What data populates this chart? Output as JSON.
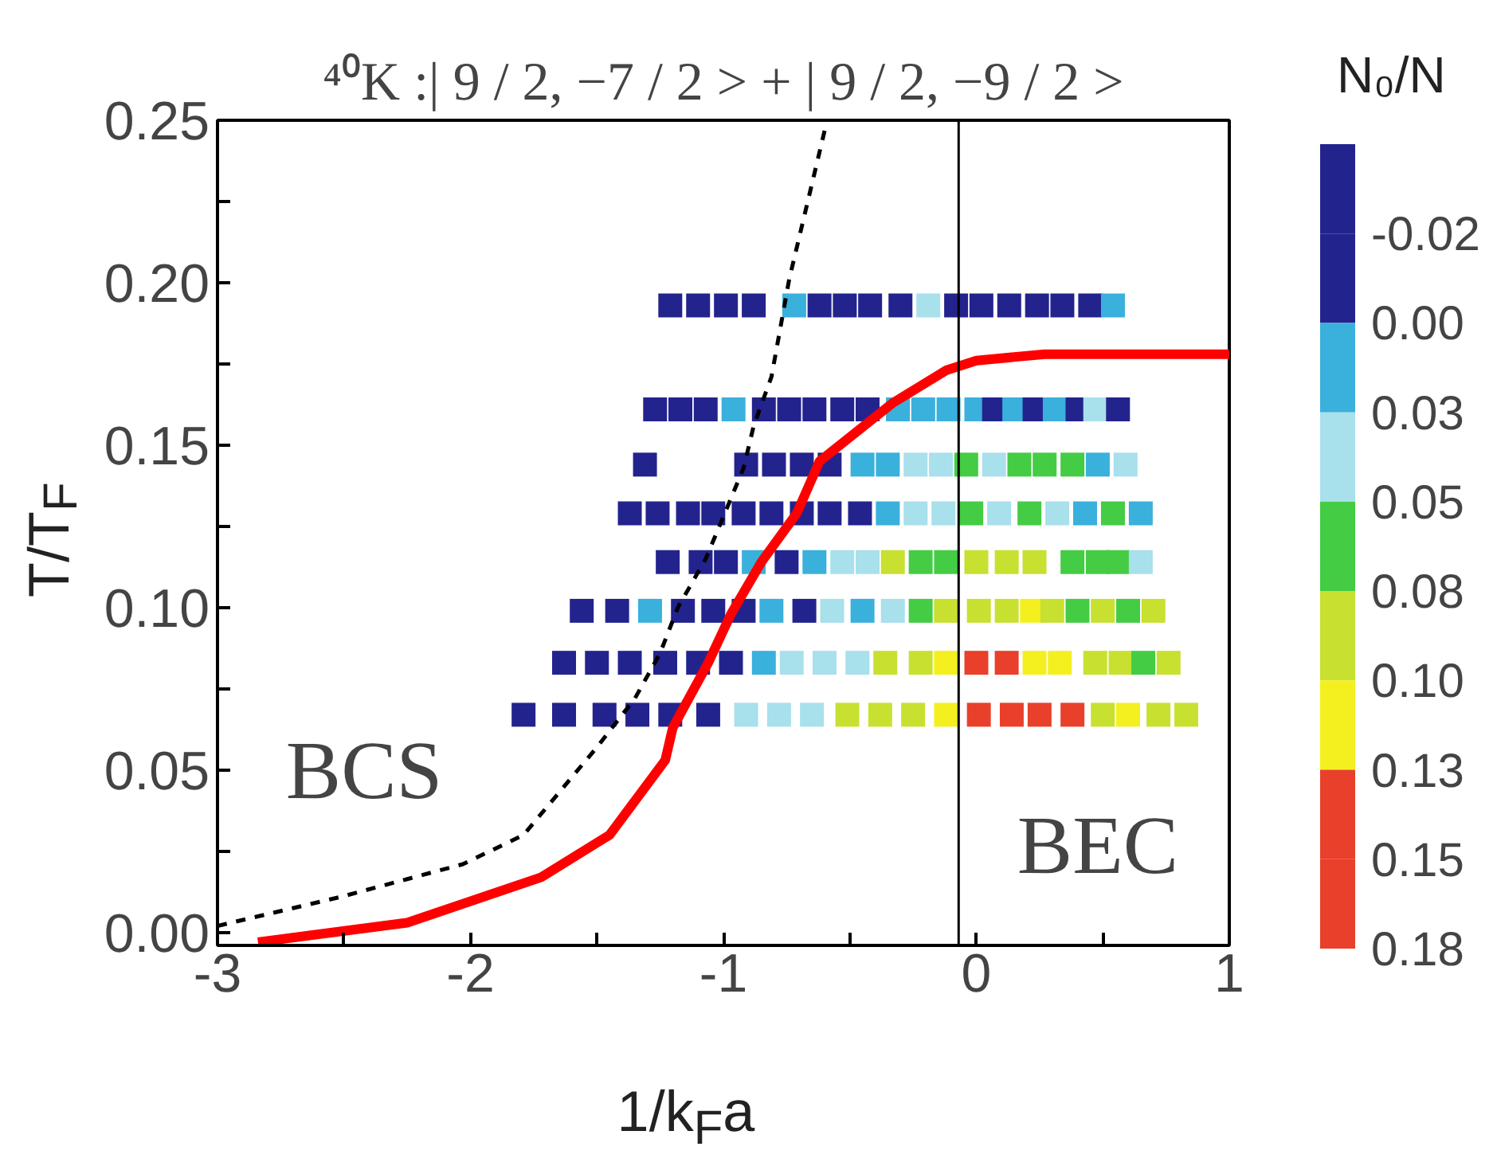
{
  "chart_data": {
    "type": "scatter",
    "title": "⁴⁰K :| 9 / 2, −7 / 2 > + | 9 / 2, −9 / 2 >",
    "xlabel": "1/k$_{F}$a",
    "ylabel": "T/T$_{F}$",
    "clabel": "N₀/N",
    "xlim": [
      -3,
      1
    ],
    "ylim": [
      -0.004,
      0.25
    ],
    "xticks": [
      -3,
      {
        "value": -2.5,
        "label": null
      },
      -2,
      {
        "value": -1.5,
        "label": null
      },
      -1,
      {
        "value": -0.5,
        "label": null
      },
      0,
      {
        "value": 0.5,
        "label": null
      },
      1
    ],
    "yticks": [
      {
        "value": 0,
        "label": "0.00"
      },
      {
        "value": 0.025,
        "label": null
      },
      0.05,
      {
        "value": 0.075,
        "label": null
      },
      {
        "value": 0.1,
        "label": "0.10"
      },
      {
        "value": 0.125,
        "label": null
      },
      0.15,
      {
        "value": 0.175,
        "label": null
      },
      {
        "value": 0.2,
        "label": "0.20"
      },
      {
        "value": 0.225,
        "label": null
      },
      0.25
    ],
    "clim": [
      -0.05,
      0.175
    ],
    "cticks": [
      {
        "value": -0.025,
        "label": "-0.02"
      },
      {
        "value": 0,
        "label": "0.00"
      },
      {
        "value": 0.025,
        "label": "0.03"
      },
      {
        "value": 0.05,
        "label": "0.05"
      },
      {
        "value": 0.075,
        "label": "0.08"
      },
      {
        "value": 0.1,
        "label": "0.10"
      },
      {
        "value": 0.125,
        "label": "0.13"
      },
      {
        "value": 0.15,
        "label": "0.15"
      },
      {
        "value": 0.175,
        "label": "0.18"
      }
    ],
    "colors": [
      "#23238e",
      "#23238e",
      "#3ab0dc",
      "#a8e0ec",
      "#44cc44",
      "#c8e030",
      "#f4f020",
      "#e8402a",
      "#e8402a"
    ],
    "marker": "square",
    "grid": false,
    "series": [
      {
        "colors": [
          "#23238e",
          "#23238e",
          "#23238e",
          "#23238e",
          "#23238e",
          "#23238e",
          "#a8e0ec",
          "#a8e0ec",
          "#a8e0ec",
          "#c8e030",
          "#c8e030",
          "#c8e030",
          "#f4f020",
          "#e8402a",
          "#e8402a",
          "#e8402a",
          "#e8402a",
          "#c8e030",
          "#f4f020",
          "#c8e030",
          "#c8e030"
        ],
        "x": [
          -1.79,
          -1.63,
          -1.47,
          -1.34,
          -1.21,
          -1.06,
          -0.91,
          -0.78,
          -0.65,
          -0.51,
          -0.38,
          -0.25,
          -0.12,
          0.01,
          0.14,
          0.25,
          0.38,
          0.5,
          0.6,
          0.72,
          0.83
        ],
        "values": [
          0.067,
          0.067,
          0.067,
          0.067,
          0.067,
          0.067,
          0.067,
          0.067,
          0.067,
          0.067,
          0.067,
          0.067,
          0.067,
          0.067,
          0.067,
          0.067,
          0.067,
          0.067,
          0.067,
          0.067,
          0.067
        ]
      },
      {
        "colors": [
          "#23238e",
          "#23238e",
          "#23238e",
          "#23238e",
          "#23238e",
          "#23238e",
          "#3ab0dc",
          "#a8e0ec",
          "#a8e0ec",
          "#a8e0ec",
          "#c8e030",
          "#c8e030",
          "#f4f020",
          "#e8402a",
          "#e8402a",
          "#f4f020",
          "#f4f020",
          "#c8e030",
          "#c8e030",
          "#44cc44",
          "#c8e030"
        ],
        "x": [
          -1.63,
          -1.5,
          -1.37,
          -1.23,
          -1.1,
          -0.97,
          -0.84,
          -0.73,
          -0.6,
          -0.47,
          -0.36,
          -0.22,
          -0.12,
          0.0,
          0.12,
          0.23,
          0.33,
          0.47,
          0.57,
          0.66,
          0.76
        ],
        "values": [
          0.083,
          0.083,
          0.083,
          0.083,
          0.083,
          0.083,
          0.083,
          0.083,
          0.083,
          0.083,
          0.083,
          0.083,
          0.083,
          0.083,
          0.083,
          0.083,
          0.083,
          0.083,
          0.083,
          0.083,
          0.083
        ]
      },
      {
        "colors": [
          "#23238e",
          "#23238e",
          "#3ab0dc",
          "#23238e",
          "#23238e",
          "#23238e",
          "#3ab0dc",
          "#23238e",
          "#a8e0ec",
          "#3ab0dc",
          "#a8e0ec",
          "#44cc44",
          "#c8e030",
          "#c8e030",
          "#c8e030",
          "#f4f020",
          "#c8e030",
          "#44cc44",
          "#c8e030",
          "#44cc44",
          "#c8e030"
        ],
        "x": [
          -1.56,
          -1.42,
          -1.29,
          -1.16,
          -1.04,
          -0.92,
          -0.81,
          -0.68,
          -0.57,
          -0.45,
          -0.33,
          -0.22,
          -0.12,
          0.01,
          0.12,
          0.22,
          0.3,
          0.4,
          0.5,
          0.6,
          0.7
        ],
        "values": [
          0.099,
          0.099,
          0.099,
          0.099,
          0.099,
          0.099,
          0.099,
          0.099,
          0.099,
          0.099,
          0.099,
          0.099,
          0.099,
          0.099,
          0.099,
          0.099,
          0.099,
          0.099,
          0.099,
          0.099,
          0.099
        ]
      },
      {
        "colors": [
          "#23238e",
          "#23238e",
          "#23238e",
          "#3ab0dc",
          "#23238e",
          "#3ab0dc",
          "#a8e0ec",
          "#a8e0ec",
          "#c8e030",
          "#44cc44",
          "#44cc44",
          "#c8e030",
          "#c8e030",
          "#c8e030",
          "#44cc44",
          "#44cc44",
          "#44cc44",
          "#a8e0ec"
        ],
        "x": [
          -1.22,
          -1.09,
          -0.99,
          -0.88,
          -0.75,
          -0.64,
          -0.53,
          -0.43,
          -0.33,
          -0.22,
          -0.12,
          0.0,
          0.12,
          0.23,
          0.38,
          0.48,
          0.56,
          0.65
        ],
        "values": [
          0.114,
          0.114,
          0.114,
          0.114,
          0.114,
          0.114,
          0.114,
          0.114,
          0.114,
          0.114,
          0.114,
          0.114,
          0.114,
          0.114,
          0.114,
          0.114,
          0.114,
          0.114
        ]
      },
      {
        "colors": [
          "#23238e",
          "#23238e",
          "#23238e",
          "#23238e",
          "#23238e",
          "#23238e",
          "#23238e",
          "#23238e",
          "#23238e",
          "#3ab0dc",
          "#a8e0ec",
          "#a8e0ec",
          "#44cc44",
          "#a8e0ec",
          "#44cc44",
          "#a8e0ec",
          "#3ab0dc",
          "#44cc44",
          "#3ab0dc"
        ],
        "x": [
          -1.37,
          -1.26,
          -1.14,
          -1.04,
          -0.92,
          -0.81,
          -0.69,
          -0.58,
          -0.46,
          -0.35,
          -0.24,
          -0.13,
          -0.02,
          0.09,
          0.21,
          0.32,
          0.43,
          0.54,
          0.65
        ],
        "values": [
          0.129,
          0.129,
          0.129,
          0.129,
          0.129,
          0.129,
          0.129,
          0.129,
          0.129,
          0.129,
          0.129,
          0.129,
          0.129,
          0.129,
          0.129,
          0.129,
          0.129,
          0.129,
          0.129
        ]
      },
      {
        "colors": [
          "#23238e",
          "#23238e",
          "#23238e",
          "#23238e",
          "#23238e",
          "#3ab0dc",
          "#3ab0dc",
          "#a8e0ec",
          "#a8e0ec",
          "#44cc44",
          "#a8e0ec",
          "#44cc44",
          "#44cc44",
          "#44cc44",
          "#3ab0dc",
          "#a8e0ec"
        ],
        "x": [
          -1.31,
          -0.91,
          -0.8,
          -0.69,
          -0.58,
          -0.45,
          -0.35,
          -0.24,
          -0.14,
          -0.04,
          0.07,
          0.17,
          0.27,
          0.38,
          0.48,
          0.59
        ],
        "values": [
          0.144,
          0.144,
          0.144,
          0.144,
          0.144,
          0.144,
          0.144,
          0.144,
          0.144,
          0.144,
          0.144,
          0.144,
          0.144,
          0.144,
          0.144,
          0.144
        ]
      },
      {
        "colors": [
          "#23238e",
          "#23238e",
          "#23238e",
          "#3ab0dc",
          "#23238e",
          "#23238e",
          "#23238e",
          "#23238e",
          "#23238e",
          "#3ab0dc",
          "#3ab0dc",
          "#3ab0dc",
          "#3ab0dc",
          "#23238e",
          "#3ab0dc",
          "#23238e",
          "#3ab0dc",
          "#23238e",
          "#a8e0ec",
          "#23238e"
        ],
        "x": [
          -1.27,
          -1.17,
          -1.07,
          -0.96,
          -0.84,
          -0.74,
          -0.64,
          -0.53,
          -0.43,
          -0.31,
          -0.21,
          -0.11,
          0.0,
          0.07,
          0.15,
          0.23,
          0.31,
          0.4,
          0.47,
          0.56
        ],
        "values": [
          0.161,
          0.161,
          0.161,
          0.161,
          0.161,
          0.161,
          0.161,
          0.161,
          0.161,
          0.161,
          0.161,
          0.161,
          0.161,
          0.161,
          0.161,
          0.161,
          0.161,
          0.161,
          0.161,
          0.161
        ]
      },
      {
        "colors": [
          "#23238e",
          "#23238e",
          "#23238e",
          "#23238e",
          "#3ab0dc",
          "#23238e",
          "#23238e",
          "#23238e",
          "#23238e",
          "#a8e0ec",
          "#23238e",
          "#23238e",
          "#23238e",
          "#23238e",
          "#23238e",
          "#23238e",
          "#3ab0dc"
        ],
        "x": [
          -1.21,
          -1.1,
          -0.99,
          -0.88,
          -0.72,
          -0.62,
          -0.52,
          -0.42,
          -0.3,
          -0.19,
          -0.08,
          0.02,
          0.13,
          0.24,
          0.34,
          0.45,
          0.54
        ],
        "values": [
          0.193,
          0.193,
          0.193,
          0.193,
          0.193,
          0.193,
          0.193,
          0.193,
          0.193,
          0.193,
          0.193,
          0.193,
          0.193,
          0.193,
          0.193,
          0.193,
          0.193
        ]
      },
      {
        "type": "line",
        "marker": "none",
        "color": "#000000",
        "line_style": "dashed",
        "x": [
          -3,
          -2.51,
          -2.03,
          -1.79,
          -1.5,
          -1.35,
          -1.25,
          -1.18,
          -1.07,
          -1.0,
          -0.92,
          -0.88,
          -0.81,
          -0.74,
          -0.59
        ],
        "values": [
          0.002,
          0.011,
          0.021,
          0.03,
          0.057,
          0.072,
          0.086,
          0.1,
          0.115,
          0.128,
          0.143,
          0.156,
          0.171,
          0.201,
          0.25
        ]
      },
      {
        "type": "line",
        "marker": "none",
        "color": "#ff0000",
        "line_style": "solid",
        "x": [
          -2.84,
          -2.25,
          -1.72,
          -1.45,
          -1.23,
          -1.2,
          -1.06,
          -0.97,
          -0.85,
          -0.71,
          -0.62,
          -0.33,
          -0.12,
          0.0,
          0.27,
          1.0
        ],
        "values": [
          -0.003,
          0.003,
          0.017,
          0.03,
          0.053,
          0.063,
          0.083,
          0.098,
          0.114,
          0.129,
          0.145,
          0.163,
          0.173,
          0.176,
          0.178,
          0.178
        ]
      }
    ],
    "ref_lines": [
      {
        "axis": "x",
        "value": -0.07,
        "color": "#000000"
      }
    ],
    "annotations": [
      "BCS",
      "BEC"
    ]
  }
}
